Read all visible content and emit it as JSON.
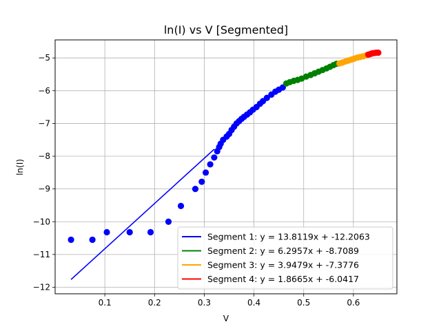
{
  "chart_data": {
    "type": "scatter",
    "title": "ln(I) vs V [Segmented]",
    "xlabel": "V",
    "ylabel": "ln(I)",
    "xlim": [
      0.0,
      0.6875
    ],
    "ylim": [
      -12.2,
      -4.45
    ],
    "grid": true,
    "legend_position": "lower-right",
    "x_ticks": [
      0.1,
      0.2,
      0.3,
      0.4,
      0.5,
      0.6
    ],
    "x_tick_labels": [
      "0.1",
      "0.2",
      "0.3",
      "0.4",
      "0.5",
      "0.6"
    ],
    "y_ticks": [
      -12,
      -11,
      -10,
      -9,
      -8,
      -7,
      -6,
      -5
    ],
    "y_tick_labels": [
      "−12",
      "−11",
      "−10",
      "−9",
      "−8",
      "−7",
      "−6",
      "−5"
    ],
    "scatter_points": [
      {
        "x": 0.032,
        "y": -10.55
      },
      {
        "x": 0.075,
        "y": -10.55
      },
      {
        "x": 0.104,
        "y": -10.32
      },
      {
        "x": 0.15,
        "y": -10.32
      },
      {
        "x": 0.192,
        "y": -10.32
      },
      {
        "x": 0.228,
        "y": -10.0
      },
      {
        "x": 0.253,
        "y": -9.52
      },
      {
        "x": 0.282,
        "y": -9.0
      },
      {
        "x": 0.295,
        "y": -8.78
      },
      {
        "x": 0.303,
        "y": -8.5
      },
      {
        "x": 0.312,
        "y": -8.25
      },
      {
        "x": 0.32,
        "y": -8.04
      },
      {
        "x": 0.326,
        "y": -7.85
      },
      {
        "x": 0.33,
        "y": -7.72
      },
      {
        "x": 0.333,
        "y": -7.62
      },
      {
        "x": 0.338,
        "y": -7.5
      },
      {
        "x": 0.345,
        "y": -7.4
      },
      {
        "x": 0.35,
        "y": -7.32
      },
      {
        "x": 0.355,
        "y": -7.2
      },
      {
        "x": 0.36,
        "y": -7.1
      },
      {
        "x": 0.365,
        "y": -7.0
      },
      {
        "x": 0.37,
        "y": -6.93
      },
      {
        "x": 0.375,
        "y": -6.86
      },
      {
        "x": 0.38,
        "y": -6.8
      },
      {
        "x": 0.386,
        "y": -6.73
      },
      {
        "x": 0.392,
        "y": -6.66
      },
      {
        "x": 0.398,
        "y": -6.58
      },
      {
        "x": 0.405,
        "y": -6.5
      },
      {
        "x": 0.412,
        "y": -6.4
      },
      {
        "x": 0.418,
        "y": -6.32
      },
      {
        "x": 0.426,
        "y": -6.22
      },
      {
        "x": 0.435,
        "y": -6.12
      },
      {
        "x": 0.443,
        "y": -6.03
      },
      {
        "x": 0.45,
        "y": -5.97
      },
      {
        "x": 0.458,
        "y": -5.9
      },
      {
        "x": 0.465,
        "y": -5.78
      },
      {
        "x": 0.472,
        "y": -5.74
      },
      {
        "x": 0.48,
        "y": -5.7
      },
      {
        "x": 0.488,
        "y": -5.67
      },
      {
        "x": 0.496,
        "y": -5.63
      },
      {
        "x": 0.505,
        "y": -5.57
      },
      {
        "x": 0.514,
        "y": -5.52
      },
      {
        "x": 0.522,
        "y": -5.47
      },
      {
        "x": 0.53,
        "y": -5.42
      },
      {
        "x": 0.538,
        "y": -5.37
      },
      {
        "x": 0.546,
        "y": -5.32
      },
      {
        "x": 0.553,
        "y": -5.27
      },
      {
        "x": 0.56,
        "y": -5.22
      },
      {
        "x": 0.566,
        "y": -5.18
      },
      {
        "x": 0.572,
        "y": -5.17
      },
      {
        "x": 0.578,
        "y": -5.14
      },
      {
        "x": 0.584,
        "y": -5.11
      },
      {
        "x": 0.59,
        "y": -5.08
      },
      {
        "x": 0.596,
        "y": -5.05
      },
      {
        "x": 0.602,
        "y": -5.02
      },
      {
        "x": 0.608,
        "y": -4.99
      },
      {
        "x": 0.614,
        "y": -4.97
      },
      {
        "x": 0.62,
        "y": -4.95
      },
      {
        "x": 0.626,
        "y": -4.92
      },
      {
        "x": 0.63,
        "y": -4.9
      },
      {
        "x": 0.634,
        "y": -4.88
      },
      {
        "x": 0.638,
        "y": -4.86
      },
      {
        "x": 0.642,
        "y": -4.85
      },
      {
        "x": 0.646,
        "y": -4.84
      },
      {
        "x": 0.65,
        "y": -4.84
      }
    ],
    "series": [
      {
        "name": "Segment 1: y = 13.8119x + -12.2063",
        "slope": 13.8119,
        "intercept": -12.2063,
        "x_range": [
          0.032,
          0.32
        ],
        "color": "#0000ff"
      },
      {
        "name": "Segment 2: y = 6.2957x + -8.7089",
        "slope": 6.2957,
        "intercept": -8.7089,
        "x_range": [
          0.465,
          0.566
        ],
        "color": "#008000"
      },
      {
        "name": "Segment 3: y = 3.9479x + -7.3776",
        "slope": 3.9479,
        "intercept": -7.3776,
        "x_range": [
          0.572,
          0.626
        ],
        "color": "#ffa500"
      },
      {
        "name": "Segment 4: y = 1.8665x + -6.0417",
        "slope": 1.8665,
        "intercept": -6.0417,
        "x_range": [
          0.63,
          0.65
        ],
        "color": "#ff0000"
      }
    ],
    "segment_boundaries_x": [
      0.462,
      0.569,
      0.628
    ]
  }
}
